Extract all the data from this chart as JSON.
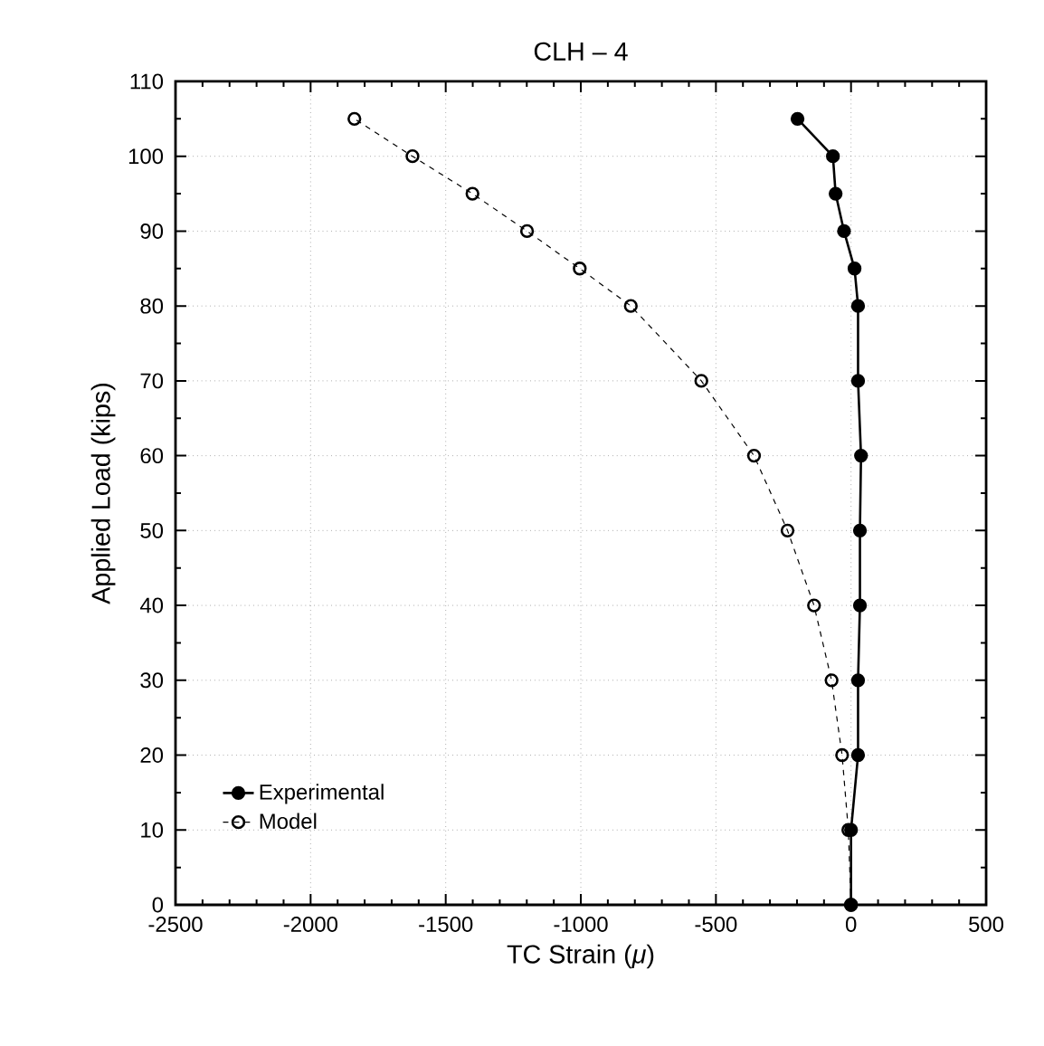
{
  "chart_data": {
    "type": "line",
    "title": "CLH – 4",
    "xlabel": "TC Strain (*μ*)",
    "ylabel": "Applied Load (kips)",
    "xlim": [
      -2500,
      500
    ],
    "xticks": [
      -2500,
      -2000,
      -1500,
      -1000,
      -500,
      0,
      500
    ],
    "ylim": [
      0,
      110
    ],
    "yticks": [
      0,
      10,
      20,
      30,
      40,
      50,
      60,
      70,
      80,
      90,
      100,
      110
    ],
    "grid": true,
    "legend": "bottom left",
    "marker": "circle",
    "series": [
      {
        "name": "Experimental",
        "color": "#000000",
        "line_style": "solid",
        "x": [
          0,
          0,
          26,
          26,
          33,
          33,
          37,
          26,
          26,
          13,
          -26,
          -57,
          -67,
          -198
        ],
        "values": [
          0,
          10,
          20,
          30,
          40,
          50,
          60,
          70,
          80,
          85,
          90,
          95,
          100,
          105
        ]
      },
      {
        "name": "Model",
        "color": "#000000",
        "line_style": "dashed",
        "x": [
          0,
          -10,
          -33,
          -72,
          -137,
          -235,
          -359,
          -554,
          -815,
          -1004,
          -1199,
          -1401,
          -1623,
          -1838
        ],
        "values": [
          0,
          10,
          20,
          30,
          40,
          50,
          60,
          70,
          80,
          85,
          90,
          95,
          100,
          105
        ]
      }
    ]
  }
}
